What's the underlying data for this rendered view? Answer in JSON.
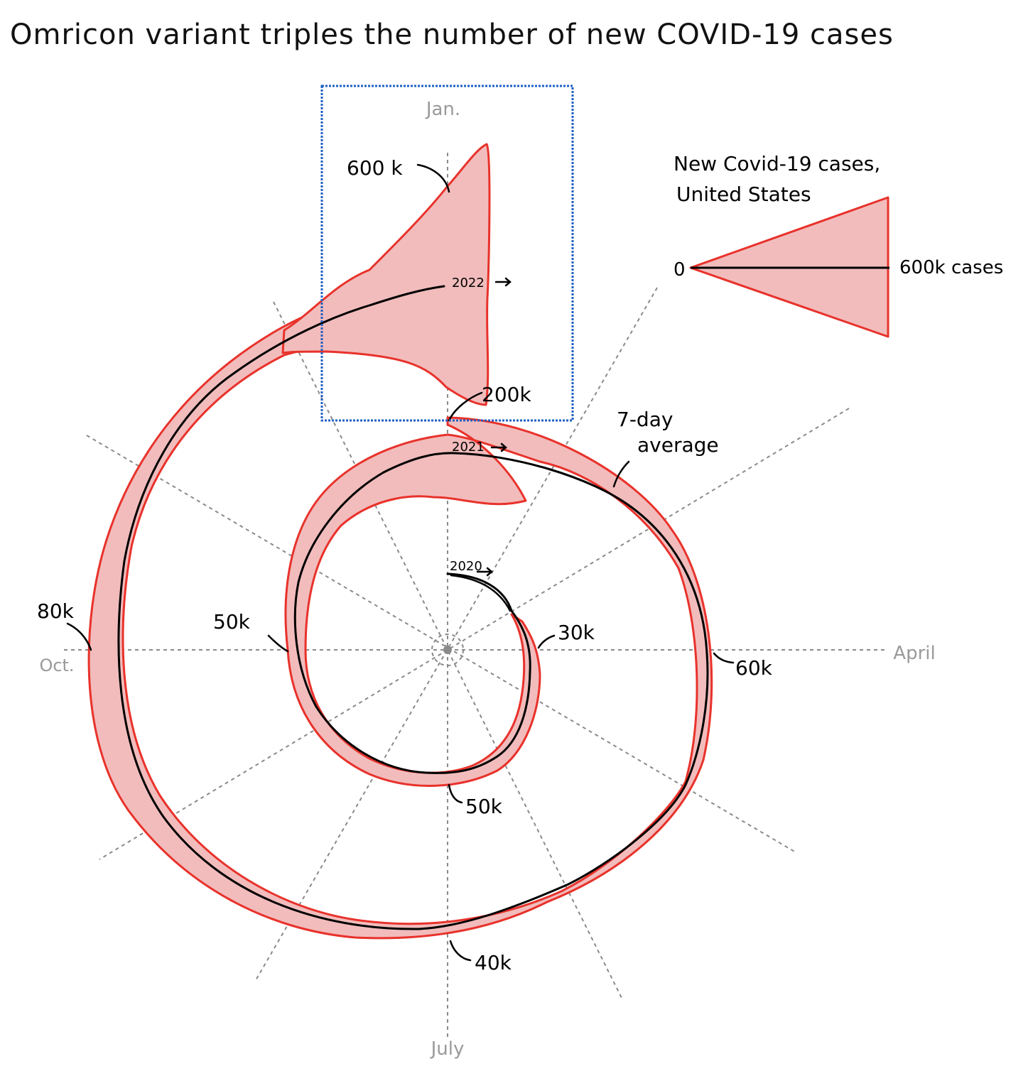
{
  "title": "Omricon variant triples the number of new COVID-19 cases",
  "colors": {
    "band_fill": "#f2bcbc",
    "band_stroke": "#e8322b",
    "average_line": "#000000",
    "guide": "#8a8a8a",
    "month_label": "#9a9a9a",
    "highlight_box": "#1f5fc4"
  },
  "legend": {
    "title_line1": "New Covid-19 cases,",
    "title_line2": "United States",
    "zero_label": "0",
    "max_label": "600k cases"
  },
  "chart_data": {
    "type": "area",
    "subtype": "spiral",
    "title": "Omricon variant triples the number of new COVID-19 cases",
    "angular_axis": {
      "labels": [
        "Jan.",
        "April",
        "July",
        "Oct."
      ],
      "direction": "clockwise",
      "spokes": 12,
      "grid": true
    },
    "series": [
      {
        "name": "7-day average",
        "points": [
          {
            "date": "2020-03-01",
            "value": 0
          },
          {
            "date": "2020-04-01",
            "value": 30000
          },
          {
            "date": "2020-07-01",
            "value": 50000
          },
          {
            "date": "2020-10-01",
            "value": 50000
          },
          {
            "date": "2021-01-01",
            "value": 200000
          },
          {
            "date": "2021-04-01",
            "value": 60000
          },
          {
            "date": "2021-07-01",
            "value": 40000
          },
          {
            "date": "2021-10-01",
            "value": 80000
          },
          {
            "date": "2022-01-01",
            "value": 600000
          }
        ]
      }
    ],
    "year_labels": [
      "2020",
      "2021",
      "2022"
    ],
    "annotations": [
      "600 k",
      "200k",
      "30k",
      "60k",
      "50k",
      "50k",
      "40k",
      "80k",
      "7-day average"
    ]
  }
}
